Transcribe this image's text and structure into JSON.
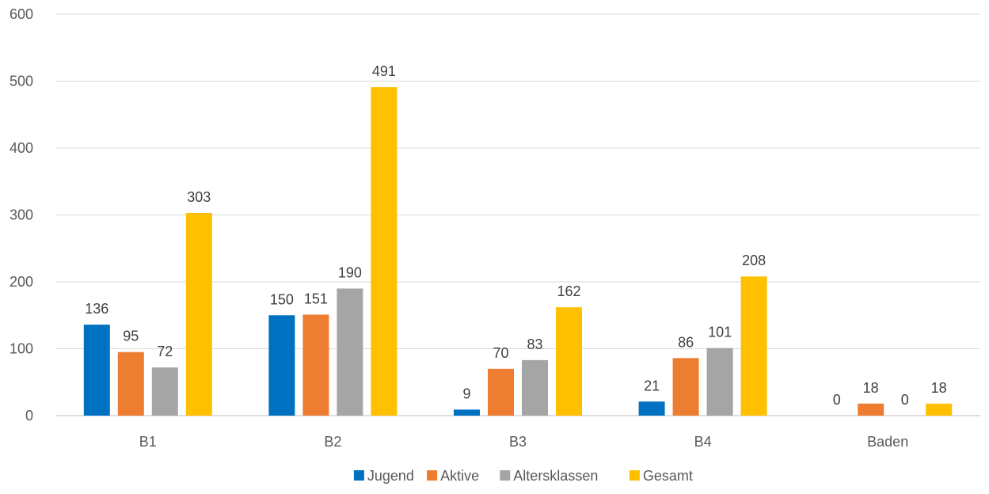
{
  "chart_data": {
    "type": "bar",
    "title": "",
    "xlabel": "",
    "ylabel": "",
    "ylim": [
      0,
      600
    ],
    "yticks": [
      0,
      100,
      200,
      300,
      400,
      500,
      600
    ],
    "grid": true,
    "legend_position": "bottom",
    "categories": [
      "B1",
      "B2",
      "B3",
      "B4",
      "Baden"
    ],
    "series": [
      {
        "name": "Jugend",
        "color": "#0070C0",
        "values": [
          136,
          150,
          9,
          21,
          0
        ]
      },
      {
        "name": "Aktive",
        "color": "#ED7D31",
        "values": [
          95,
          151,
          70,
          86,
          18
        ]
      },
      {
        "name": "Altersklassen",
        "color": "#A5A5A5",
        "values": [
          72,
          190,
          83,
          101,
          0
        ]
      },
      {
        "name": "Gesamt",
        "color": "#FFC000",
        "values": [
          303,
          491,
          162,
          208,
          18
        ]
      }
    ]
  }
}
